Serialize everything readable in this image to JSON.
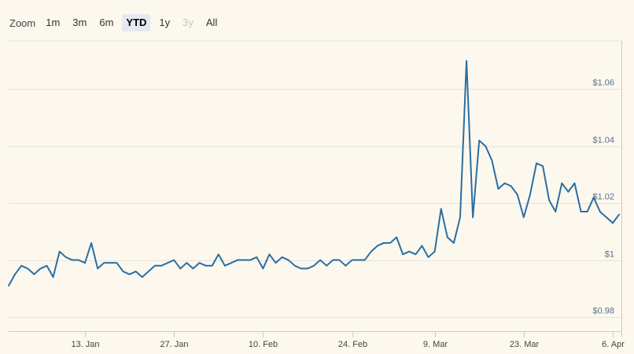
{
  "zoom": {
    "label": "Zoom",
    "buttons": [
      {
        "label": "1m",
        "state": "normal"
      },
      {
        "label": "3m",
        "state": "normal"
      },
      {
        "label": "6m",
        "state": "normal"
      },
      {
        "label": "YTD",
        "state": "active"
      },
      {
        "label": "1y",
        "state": "normal"
      },
      {
        "label": "3y",
        "state": "disabled"
      },
      {
        "label": "All",
        "state": "normal"
      }
    ]
  },
  "colors": {
    "line": "#2b6ea3",
    "grid": "#e6e3dd",
    "background": "#fcf8ee"
  },
  "chart_data": {
    "type": "line",
    "title": "",
    "xlabel": "",
    "ylabel": "",
    "x_range": [
      "2025-01-01",
      "2025-04-06"
    ],
    "ylim": [
      0.975,
      1.077
    ],
    "y_ticks": [
      0.98,
      1.0,
      1.02,
      1.04,
      1.06
    ],
    "y_tick_labels": [
      "$0.98",
      "$1",
      "$1.02",
      "$1.04",
      "$1.06"
    ],
    "x_ticks": [
      "2025-01-13",
      "2025-01-27",
      "2025-02-10",
      "2025-02-24",
      "2025-03-09",
      "2025-03-23",
      "2025-04-06"
    ],
    "x_tick_labels": [
      "13. Jan",
      "27. Jan",
      "10. Feb",
      "24. Feb",
      "9. Mar",
      "23. Mar",
      "6. Apr"
    ],
    "grid": true,
    "legend": "none",
    "series": [
      {
        "values": [
          [
            "2025-01-01",
            0.991
          ],
          [
            "2025-01-02",
            0.995
          ],
          [
            "2025-01-03",
            0.998
          ],
          [
            "2025-01-04",
            0.997
          ],
          [
            "2025-01-05",
            0.995
          ],
          [
            "2025-01-06",
            0.997
          ],
          [
            "2025-01-07",
            0.998
          ],
          [
            "2025-01-08",
            0.994
          ],
          [
            "2025-01-09",
            1.003
          ],
          [
            "2025-01-10",
            1.001
          ],
          [
            "2025-01-11",
            1.0
          ],
          [
            "2025-01-12",
            1.0
          ],
          [
            "2025-01-13",
            0.999
          ],
          [
            "2025-01-14",
            1.006
          ],
          [
            "2025-01-15",
            0.997
          ],
          [
            "2025-01-16",
            0.999
          ],
          [
            "2025-01-17",
            0.999
          ],
          [
            "2025-01-18",
            0.999
          ],
          [
            "2025-01-19",
            0.996
          ],
          [
            "2025-01-20",
            0.995
          ],
          [
            "2025-01-21",
            0.996
          ],
          [
            "2025-01-22",
            0.994
          ],
          [
            "2025-01-23",
            0.996
          ],
          [
            "2025-01-24",
            0.998
          ],
          [
            "2025-01-25",
            0.998
          ],
          [
            "2025-01-26",
            0.999
          ],
          [
            "2025-01-27",
            1.0
          ],
          [
            "2025-01-28",
            0.997
          ],
          [
            "2025-01-29",
            0.999
          ],
          [
            "2025-01-30",
            0.997
          ],
          [
            "2025-01-31",
            0.999
          ],
          [
            "2025-02-01",
            0.998
          ],
          [
            "2025-02-02",
            0.998
          ],
          [
            "2025-02-03",
            1.002
          ],
          [
            "2025-02-04",
            0.998
          ],
          [
            "2025-02-05",
            0.999
          ],
          [
            "2025-02-06",
            1.0
          ],
          [
            "2025-02-07",
            1.0
          ],
          [
            "2025-02-08",
            1.0
          ],
          [
            "2025-02-09",
            1.001
          ],
          [
            "2025-02-10",
            0.997
          ],
          [
            "2025-02-11",
            1.002
          ],
          [
            "2025-02-12",
            0.999
          ],
          [
            "2025-02-13",
            1.001
          ],
          [
            "2025-02-14",
            1.0
          ],
          [
            "2025-02-15",
            0.998
          ],
          [
            "2025-02-16",
            0.997
          ],
          [
            "2025-02-17",
            0.997
          ],
          [
            "2025-02-18",
            0.998
          ],
          [
            "2025-02-19",
            1.0
          ],
          [
            "2025-02-20",
            0.998
          ],
          [
            "2025-02-21",
            1.0
          ],
          [
            "2025-02-22",
            1.0
          ],
          [
            "2025-02-23",
            0.998
          ],
          [
            "2025-02-24",
            1.0
          ],
          [
            "2025-02-25",
            1.0
          ],
          [
            "2025-02-26",
            1.0
          ],
          [
            "2025-02-27",
            1.003
          ],
          [
            "2025-02-28",
            1.005
          ],
          [
            "2025-03-01",
            1.006
          ],
          [
            "2025-03-02",
            1.006
          ],
          [
            "2025-03-03",
            1.008
          ],
          [
            "2025-03-04",
            1.002
          ],
          [
            "2025-03-05",
            1.003
          ],
          [
            "2025-03-06",
            1.002
          ],
          [
            "2025-03-07",
            1.005
          ],
          [
            "2025-03-08",
            1.001
          ],
          [
            "2025-03-09",
            1.003
          ],
          [
            "2025-03-10",
            1.018
          ],
          [
            "2025-03-11",
            1.008
          ],
          [
            "2025-03-12",
            1.006
          ],
          [
            "2025-03-13",
            1.015
          ],
          [
            "2025-03-14",
            1.07
          ],
          [
            "2025-03-15",
            1.015
          ],
          [
            "2025-03-16",
            1.042
          ],
          [
            "2025-03-17",
            1.04
          ],
          [
            "2025-03-18",
            1.035
          ],
          [
            "2025-03-19",
            1.025
          ],
          [
            "2025-03-20",
            1.027
          ],
          [
            "2025-03-21",
            1.026
          ],
          [
            "2025-03-22",
            1.023
          ],
          [
            "2025-03-23",
            1.015
          ],
          [
            "2025-03-24",
            1.023
          ],
          [
            "2025-03-25",
            1.034
          ],
          [
            "2025-03-26",
            1.033
          ],
          [
            "2025-03-27",
            1.021
          ],
          [
            "2025-03-28",
            1.017
          ],
          [
            "2025-03-29",
            1.027
          ],
          [
            "2025-03-30",
            1.024
          ],
          [
            "2025-03-31",
            1.027
          ],
          [
            "2025-04-01",
            1.017
          ],
          [
            "2025-04-02",
            1.017
          ],
          [
            "2025-04-03",
            1.022
          ],
          [
            "2025-04-04",
            1.017
          ],
          [
            "2025-04-05",
            1.015
          ],
          [
            "2025-04-06",
            1.013
          ],
          [
            "2025-04-07",
            1.016
          ]
        ]
      }
    ]
  }
}
